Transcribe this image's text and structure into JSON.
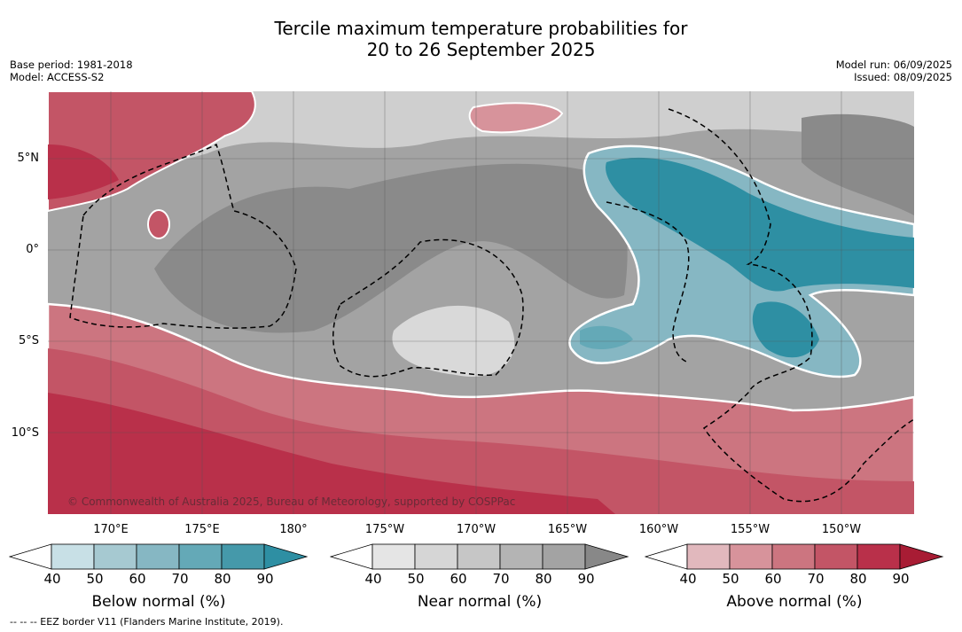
{
  "title_line1": "Tercile maximum temperature probabilities for",
  "title_line2": "20 to 26 September 2025",
  "base_period": "Base period: 1981-2018",
  "model": "Model: ACCESS-S2",
  "model_run": "Model run: 06/09/2025",
  "issued": "Issued: 08/09/2025",
  "latitude_labels": [
    "5°N",
    "0°",
    "5°S",
    "10°S"
  ],
  "longitude_labels": [
    "170°E",
    "175°E",
    "180°",
    "175°W",
    "170°W",
    "165°W",
    "160°W",
    "155°W",
    "150°W"
  ],
  "copyright": "© Commonwealth of Australia 2025, Bureau of Meteorology, supported by COSPPac",
  "colorbars": [
    {
      "title": "Below normal (%)",
      "ticks": [
        "40",
        "50",
        "60",
        "70",
        "80",
        "90"
      ],
      "colors": [
        "#ffffff",
        "#c8e0e6",
        "#a6c9d1",
        "#86b7c3",
        "#64a9b7",
        "#4599aa",
        "#2e8fa3"
      ]
    },
    {
      "title": "Near normal (%)",
      "ticks": [
        "40",
        "50",
        "60",
        "70",
        "80",
        "90"
      ],
      "colors": [
        "#ffffff",
        "#e5e5e5",
        "#d6d6d6",
        "#c6c6c6",
        "#b4b4b4",
        "#a3a3a3",
        "#888888"
      ]
    },
    {
      "title": "Above normal (%)",
      "ticks": [
        "40",
        "50",
        "60",
        "70",
        "80",
        "90"
      ],
      "colors": [
        "#ffffff",
        "#e1b8bd",
        "#d7939b",
        "#cc7580",
        "#c35566",
        "#b9304a",
        "#a81c34"
      ]
    }
  ],
  "footer": "--  --  -- EEZ border V11 (Flanders Marine Institute, 2019)."
}
